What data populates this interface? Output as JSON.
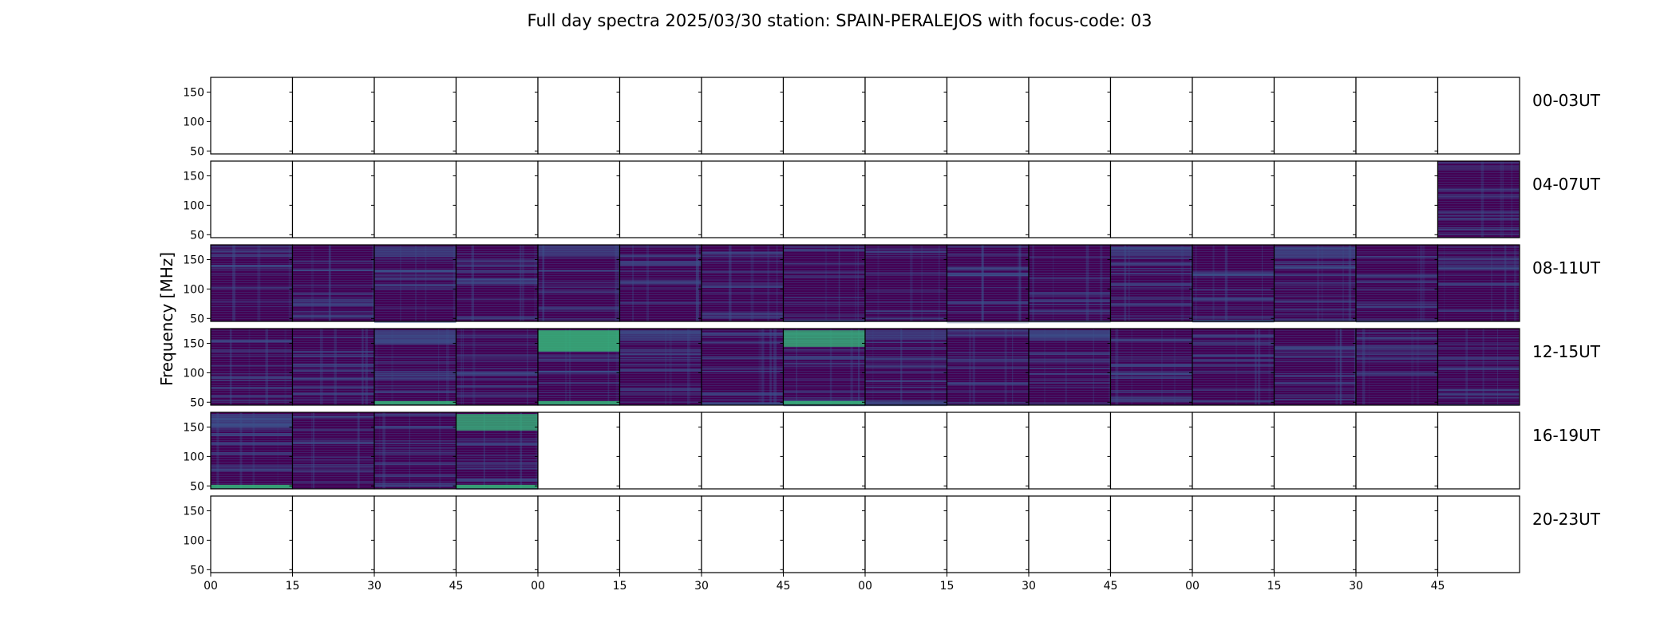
{
  "chart_data": {
    "type": "heatmap",
    "title": "Full day spectra 2025/03/30 station: SPAIN-PERALEJOS with focus-code: 03",
    "ylabel": "Frequency [MHz]",
    "xlabel": "",
    "y_ticks": [
      "150",
      "100",
      "50"
    ],
    "x_ticks": [
      "00",
      "15",
      "30",
      "45",
      "00",
      "15",
      "30",
      "45",
      "00",
      "15",
      "30",
      "45",
      "00",
      "15",
      "30",
      "45"
    ],
    "ylim": [
      45,
      175
    ],
    "colormap": "viridis",
    "panels_per_row": 16,
    "rows": [
      {
        "label": "00-03UT",
        "panels": [
          0,
          0,
          0,
          0,
          0,
          0,
          0,
          0,
          0,
          0,
          0,
          0,
          0,
          0,
          0,
          0
        ]
      },
      {
        "label": "04-07UT",
        "panels": [
          0,
          0,
          0,
          0,
          0,
          0,
          0,
          0,
          0,
          0,
          0,
          0,
          0,
          0,
          0,
          1
        ]
      },
      {
        "label": "08-11UT",
        "panels": [
          1,
          1,
          1,
          1,
          1,
          1,
          1,
          1,
          1,
          1,
          1,
          1,
          1,
          1,
          1,
          1
        ]
      },
      {
        "label": "12-15UT",
        "panels": [
          1,
          1,
          1,
          1,
          1,
          1,
          1,
          1,
          1,
          1,
          1,
          1,
          1,
          1,
          1,
          1
        ]
      },
      {
        "label": "16-19UT",
        "panels": [
          1,
          1,
          1,
          1,
          0,
          0,
          0,
          0,
          0,
          0,
          0,
          0,
          0,
          0,
          0,
          0
        ]
      },
      {
        "label": "20-23UT",
        "panels": [
          0,
          0,
          0,
          0,
          0,
          0,
          0,
          0,
          0,
          0,
          0,
          0,
          0,
          0,
          0,
          0
        ]
      }
    ],
    "band_intensity": [
      [
        0,
        0,
        0,
        0,
        0,
        0,
        0,
        0,
        0,
        0,
        0,
        0,
        0,
        0,
        0,
        0
      ],
      [
        0,
        0,
        0,
        0,
        0,
        0,
        0,
        0,
        0,
        0,
        0,
        0,
        0,
        0,
        0,
        0.15
      ],
      [
        0.2,
        0.25,
        0.45,
        0.15,
        0.4,
        0.3,
        0.35,
        0.2,
        0.25,
        0.3,
        0.3,
        0.4,
        0.35,
        0.5,
        0.3,
        0.3
      ],
      [
        0.3,
        0.2,
        0.6,
        0.3,
        0.9,
        0.45,
        0.35,
        0.7,
        0.4,
        0.3,
        0.45,
        0.25,
        0.3,
        0.2,
        0.35,
        0.3
      ],
      [
        0.6,
        0.25,
        0.25,
        0.7,
        0,
        0,
        0,
        0,
        0,
        0,
        0,
        0,
        0,
        0,
        0,
        0
      ],
      [
        0,
        0,
        0,
        0,
        0,
        0,
        0,
        0,
        0,
        0,
        0,
        0,
        0,
        0,
        0,
        0
      ]
    ],
    "colors": {
      "background": "#440154",
      "mid": "#3b528b",
      "bright": "#35b779",
      "axis": "#000000"
    }
  }
}
